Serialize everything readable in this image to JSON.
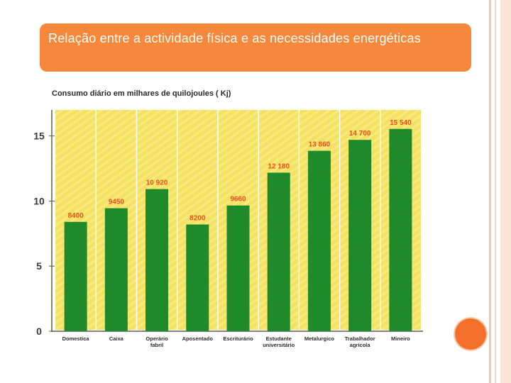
{
  "slide": {
    "title": "Relação entre a actividade física e as necessidades energéticas"
  },
  "chart_data": {
    "type": "bar",
    "title": "Consumo diário em milhares de quilojoules ( Kj)",
    "xlabel": "",
    "ylabel": "",
    "ylim": [
      0,
      17
    ],
    "y_ticks": [
      0,
      5,
      10,
      15
    ],
    "y_tick_labels": [
      "0",
      "5",
      "10",
      "15"
    ],
    "categories": [
      [
        "Domestica"
      ],
      [
        "Caixa"
      ],
      [
        "Operário",
        "fabril"
      ],
      [
        "Aposentado"
      ],
      [
        "Escriturário"
      ],
      [
        "Estudante",
        "universitário"
      ],
      [
        "Metalurgico"
      ],
      [
        "Trabalhador",
        "agrícola"
      ],
      [
        "Mineiro"
      ]
    ],
    "values": [
      8400,
      9450,
      10920,
      8200,
      9660,
      12180,
      13860,
      14700,
      15540
    ],
    "value_labels": [
      "8400",
      "9450",
      "10 920",
      "8200",
      "9660",
      "12 180",
      "13 860",
      "14 700",
      "15 540"
    ],
    "colors": {
      "bar": "#1f8a2a",
      "background": "#f4e25e",
      "value_label": "#e8501a",
      "axis": "#5a5a5a"
    }
  }
}
